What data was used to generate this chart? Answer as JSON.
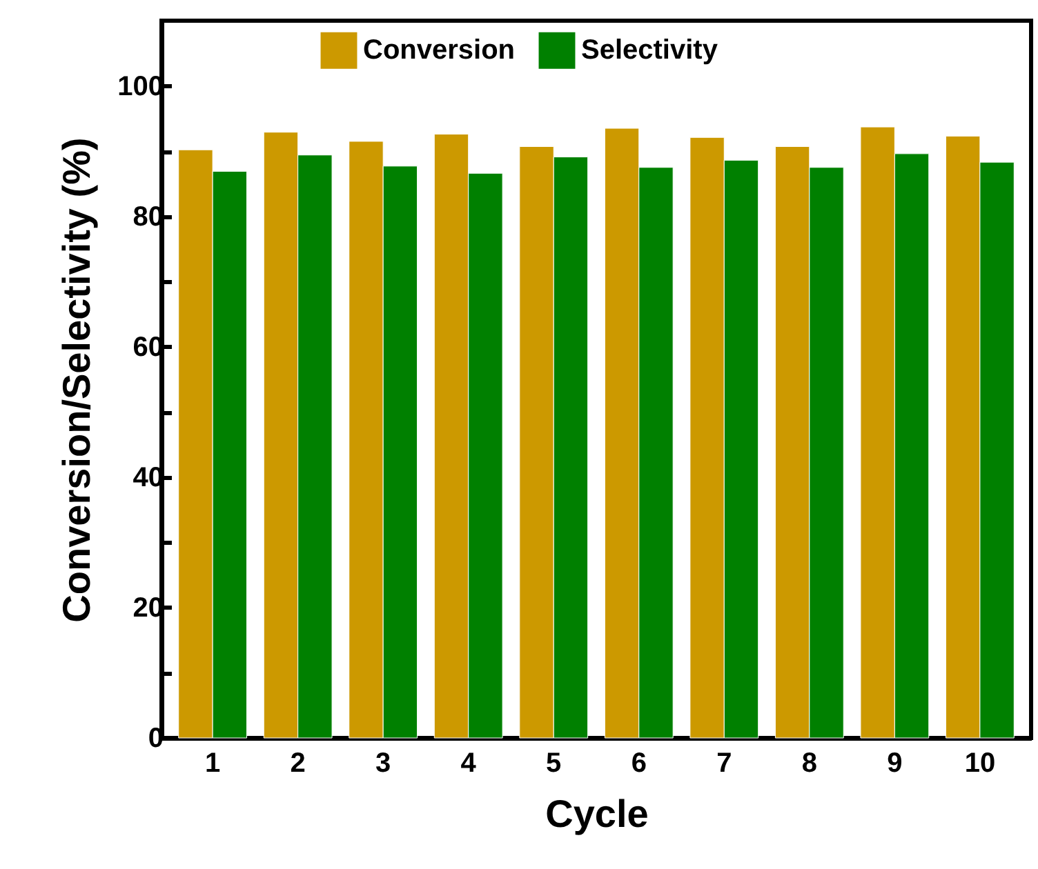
{
  "chart_data": {
    "type": "bar",
    "xlabel": "Cycle",
    "ylabel": "Conversion/Selectivity (%)",
    "categories": [
      "1",
      "2",
      "3",
      "4",
      "5",
      "6",
      "7",
      "8",
      "9",
      "10"
    ],
    "series": [
      {
        "name": "Conversion",
        "color": "#cc9900",
        "values": [
          90.2,
          92.9,
          91.5,
          92.6,
          90.7,
          93.5,
          92.1,
          90.7,
          93.7,
          92.3
        ]
      },
      {
        "name": "Selectivity",
        "color": "#008000",
        "values": [
          86.9,
          89.4,
          87.7,
          86.6,
          89.1,
          87.5,
          88.6,
          87.5,
          89.6,
          88.3
        ]
      }
    ],
    "ylim": [
      0,
      110
    ],
    "yticks": [
      0,
      {
        "value": 10,
        "label": null
      },
      20,
      {
        "value": 30,
        "label": null
      },
      40,
      {
        "value": 50,
        "label": null
      },
      60,
      {
        "value": 70,
        "label": null
      },
      80,
      {
        "value": 90,
        "label": null
      },
      100
    ],
    "legend": "top",
    "grid": false
  }
}
